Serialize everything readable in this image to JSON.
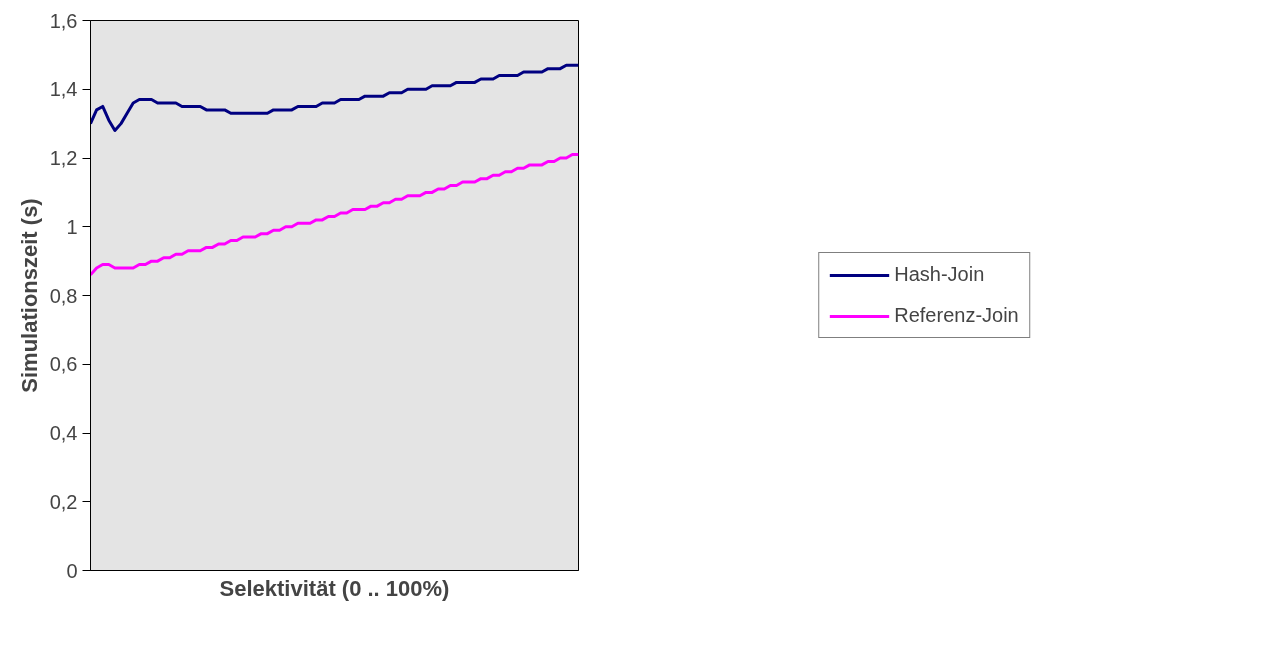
{
  "chart_data": {
    "type": "line",
    "xlabel": "Selektivität (0 .. 100%)",
    "ylabel": "Simulationszeit (s)",
    "categories": [
      null,
      null,
      null,
      null,
      null,
      null,
      null,
      null,
      null,
      null,
      null,
      null,
      null,
      null,
      null,
      null,
      null,
      null,
      null,
      null,
      null,
      null,
      null,
      null,
      null,
      null,
      null,
      null,
      null,
      null,
      null,
      null,
      null,
      null,
      null,
      null,
      null,
      null,
      null,
      null,
      null,
      null,
      null,
      null,
      null,
      null,
      null,
      null,
      null,
      null,
      null,
      null,
      null,
      null,
      null,
      null,
      null,
      null,
      null,
      null,
      null,
      null,
      null,
      null,
      null,
      null,
      null,
      null,
      null,
      null,
      null,
      null,
      null,
      null,
      null,
      null,
      null,
      null,
      null,
      null,
      null
    ],
    "series": [
      {
        "name": "Hash-Join",
        "color": "#000080",
        "values": [
          1.3,
          1.34,
          1.35,
          1.31,
          1.28,
          1.3,
          1.33,
          1.36,
          1.37,
          1.37,
          1.37,
          1.36,
          1.36,
          1.36,
          1.36,
          1.35,
          1.35,
          1.35,
          1.35,
          1.34,
          1.34,
          1.34,
          1.34,
          1.33,
          1.33,
          1.33,
          1.33,
          1.33,
          1.33,
          1.33,
          1.34,
          1.34,
          1.34,
          1.34,
          1.35,
          1.35,
          1.35,
          1.35,
          1.36,
          1.36,
          1.36,
          1.37,
          1.37,
          1.37,
          1.37,
          1.38,
          1.38,
          1.38,
          1.38,
          1.39,
          1.39,
          1.39,
          1.4,
          1.4,
          1.4,
          1.4,
          1.41,
          1.41,
          1.41,
          1.41,
          1.42,
          1.42,
          1.42,
          1.42,
          1.43,
          1.43,
          1.43,
          1.44,
          1.44,
          1.44,
          1.44,
          1.45,
          1.45,
          1.45,
          1.45,
          1.46,
          1.46,
          1.46,
          1.47,
          1.47,
          1.47
        ]
      },
      {
        "name": "Referenz-Join",
        "color": "#ff00ff",
        "values": [
          0.86,
          0.88,
          0.89,
          0.89,
          0.88,
          0.88,
          0.88,
          0.88,
          0.89,
          0.89,
          0.9,
          0.9,
          0.91,
          0.91,
          0.92,
          0.92,
          0.93,
          0.93,
          0.93,
          0.94,
          0.94,
          0.95,
          0.95,
          0.96,
          0.96,
          0.97,
          0.97,
          0.97,
          0.98,
          0.98,
          0.99,
          0.99,
          1.0,
          1.0,
          1.01,
          1.01,
          1.01,
          1.02,
          1.02,
          1.03,
          1.03,
          1.04,
          1.04,
          1.05,
          1.05,
          1.05,
          1.06,
          1.06,
          1.07,
          1.07,
          1.08,
          1.08,
          1.09,
          1.09,
          1.09,
          1.1,
          1.1,
          1.11,
          1.11,
          1.12,
          1.12,
          1.13,
          1.13,
          1.13,
          1.14,
          1.14,
          1.15,
          1.15,
          1.16,
          1.16,
          1.17,
          1.17,
          1.18,
          1.18,
          1.18,
          1.19,
          1.19,
          1.2,
          1.2,
          1.21,
          1.21
        ]
      }
    ],
    "ylim": [
      0,
      1.6
    ],
    "yticks": [
      0,
      {
        "value": 0.2,
        "label": "0,2"
      },
      {
        "value": 0.4,
        "label": "0,4"
      },
      {
        "value": 0.6,
        "label": "0,6"
      },
      {
        "value": 0.8,
        "label": "0,8"
      },
      1,
      {
        "value": 1.2,
        "label": "1,2"
      },
      {
        "value": 1.4,
        "label": "1,4"
      },
      {
        "value": 1.6,
        "label": "1,6"
      }
    ],
    "tick_labels": "y",
    "grid": false,
    "legend": "right",
    "marker": "none",
    "line_style": "solid"
  }
}
